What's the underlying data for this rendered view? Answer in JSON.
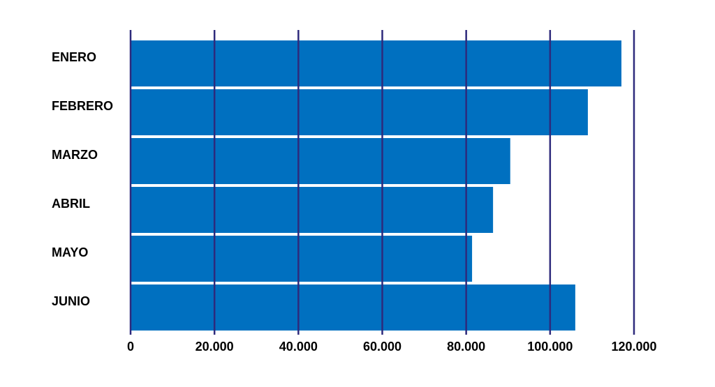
{
  "chart_data": {
    "type": "bar",
    "orientation": "horizontal",
    "categories": [
      "ENERO",
      "FEBRERO",
      "MARZO",
      "ABRIL",
      "MAYO",
      "JUNIO"
    ],
    "values": [
      117000,
      109000,
      90500,
      86400,
      81400,
      106000
    ],
    "color": "#0070c0",
    "xlim": [
      0,
      120000
    ],
    "xticks": [
      0,
      {
        "value": 20000,
        "label": "20.000"
      },
      {
        "value": 40000,
        "label": "40.000"
      },
      {
        "value": 60000,
        "label": "60.000"
      },
      {
        "value": 80000,
        "label": "80.000"
      },
      {
        "value": 100000,
        "label": "100.000"
      },
      {
        "value": 120000,
        "label": "120.000"
      }
    ],
    "grid": true
  }
}
